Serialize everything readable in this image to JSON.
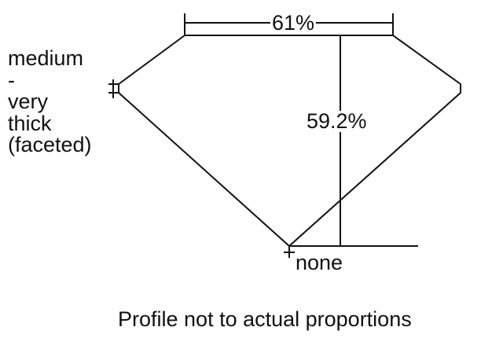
{
  "table_percent": "61%",
  "depth_percent": "59.2%",
  "girdle_label": [
    "medium",
    "-",
    "very",
    "thick",
    "(faceted)"
  ],
  "culet_label": "none",
  "caption": "Profile not to actual proportions",
  "colors": {
    "line": "#111111",
    "background": "#ffffff"
  }
}
